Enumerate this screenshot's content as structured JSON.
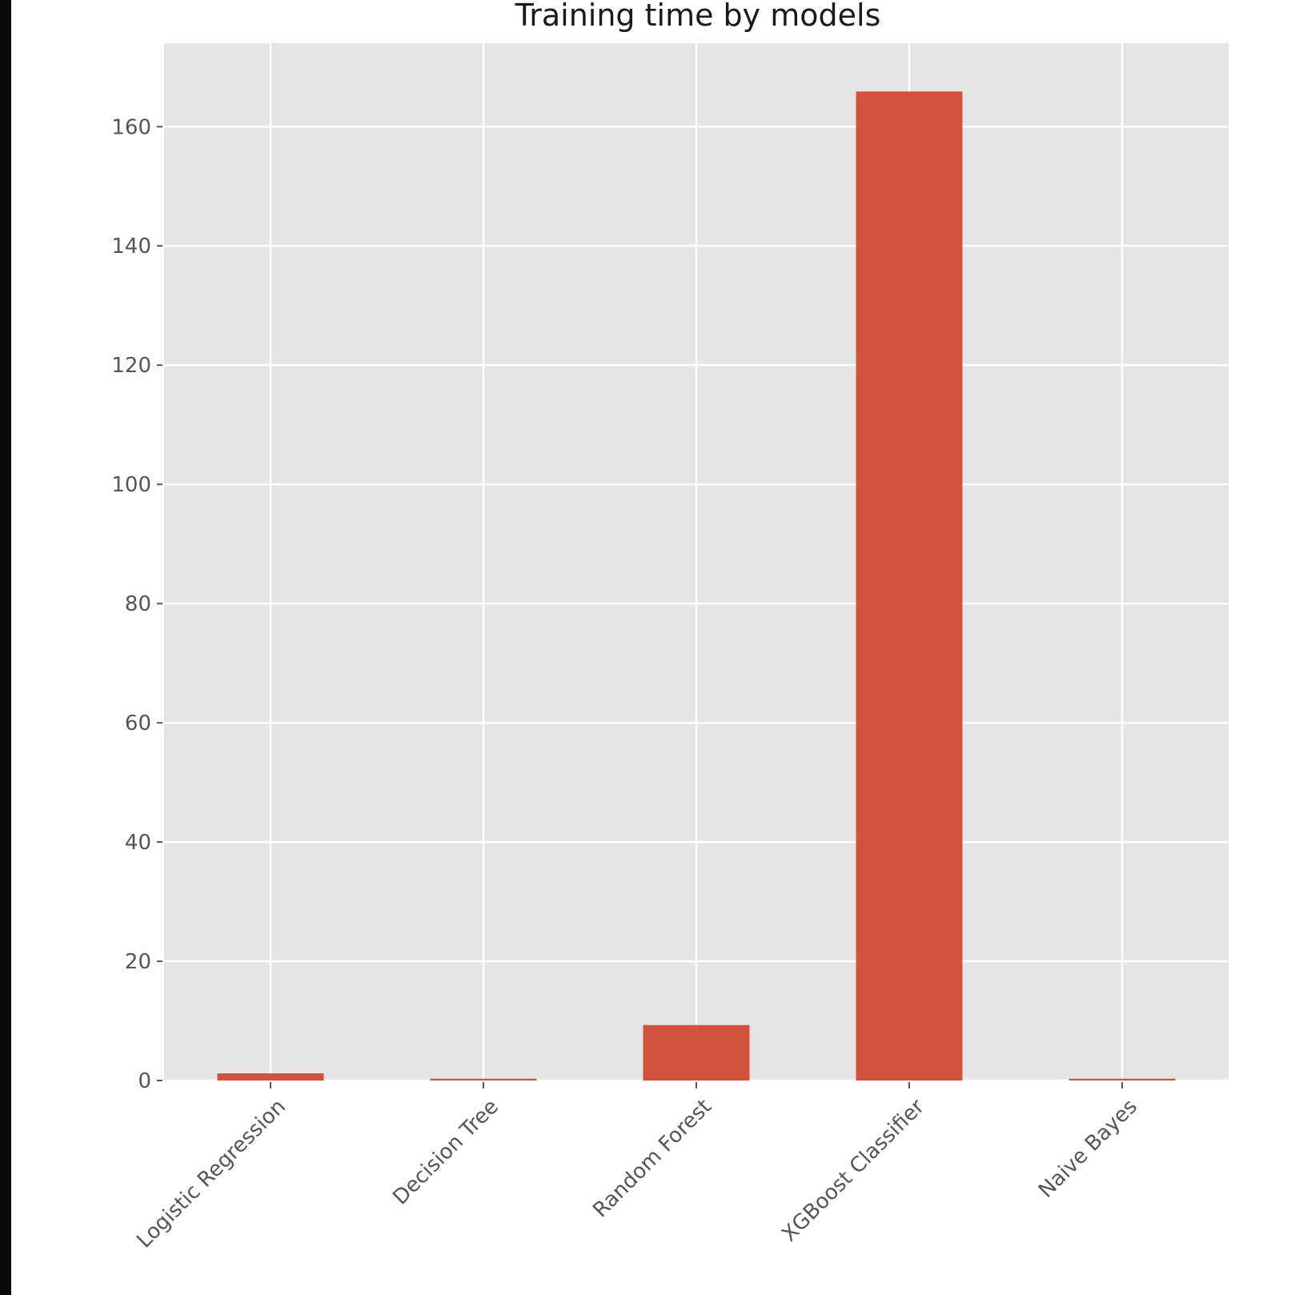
{
  "chart_data": {
    "type": "bar",
    "title": "Training time by models",
    "xlabel": "",
    "ylabel": "",
    "categories": [
      "Logistic Regression",
      "Decision Tree",
      "Random Forest",
      "XGBoost Classifier",
      "Naive Bayes"
    ],
    "values": [
      1.2,
      0.3,
      9.3,
      165.9,
      0.3
    ],
    "ylim": [
      0,
      174
    ],
    "yticks": [
      0,
      20,
      40,
      60,
      80,
      100,
      120,
      140,
      160
    ],
    "ytick_labels": [
      "0",
      "20",
      "40",
      "60",
      "80",
      "100",
      "120",
      "140",
      "160"
    ],
    "grid": true,
    "legend": "none",
    "colors": {
      "bar": "#d1523f",
      "plot_background": "#e5e5e5",
      "grid": "#ffffff",
      "tick_text": "#555555",
      "title_text": "#1a1a1a"
    }
  }
}
